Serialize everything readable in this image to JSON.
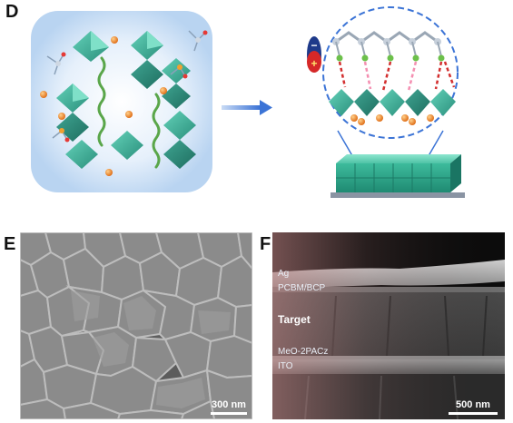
{
  "panels": {
    "d": {
      "label": "D"
    },
    "e": {
      "label": "E",
      "scale_bar": "300 nm"
    },
    "f": {
      "label": "F",
      "scale_bar": "500 nm",
      "layers": {
        "ag": "Ag",
        "pcbm": "PCBM/BCP",
        "target": "Target",
        "meo": "MeO-2PACz",
        "ito": "ITO"
      }
    }
  },
  "charge_icon": {
    "minus": "−",
    "plus": "+"
  },
  "colors": {
    "octahedron": "#3aa893",
    "ion": "#f08a24",
    "arrow": "#4f7fd8",
    "blue_glow": "#cfe3f7"
  }
}
